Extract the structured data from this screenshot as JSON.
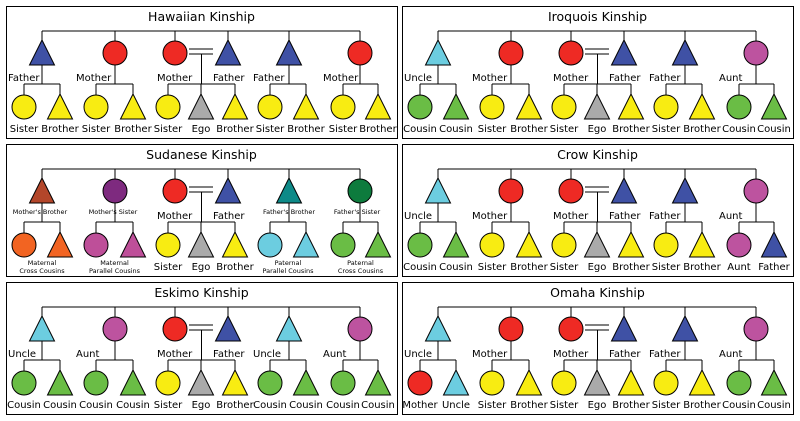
{
  "colors": {
    "blue": "#3f51a5",
    "red": "#ee2a24",
    "yellow": "#f8ec12",
    "grey": "#aaaaaa",
    "cyan": "#6ccde0",
    "purple": "#bd539f",
    "green": "#6abd45",
    "rust": "#b3462a",
    "plum": "#7e2a7f",
    "teal": "#0e8a88",
    "darkgreen": "#0d7b3d",
    "orange": "#f26422",
    "magenta": "#be4f99"
  },
  "panels": [
    {
      "title": "Hawaiian Kinship",
      "parents": [
        {
          "shape": "tri",
          "color": "blue",
          "label": "Father"
        },
        {
          "shape": "circ",
          "color": "red",
          "label": "Mother"
        },
        {
          "shape": "circ",
          "color": "red",
          "label": "Mother"
        },
        {
          "shape": "tri",
          "color": "blue",
          "label": "Father"
        },
        {
          "shape": "tri",
          "color": "blue",
          "label": "Father"
        },
        {
          "shape": "circ",
          "color": "red",
          "label": "Mother"
        }
      ],
      "children": [
        {
          "shape": "circ",
          "color": "yellow",
          "label": "Sister"
        },
        {
          "shape": "tri",
          "color": "yellow",
          "label": "Brother"
        },
        {
          "shape": "circ",
          "color": "yellow",
          "label": "Sister"
        },
        {
          "shape": "tri",
          "color": "yellow",
          "label": "Brother"
        },
        {
          "shape": "circ",
          "color": "yellow",
          "label": "Sister"
        },
        {
          "shape": "tri",
          "color": "grey",
          "label": "Ego"
        },
        {
          "shape": "tri",
          "color": "yellow",
          "label": "Brother"
        },
        {
          "shape": "circ",
          "color": "yellow",
          "label": "Sister"
        },
        {
          "shape": "tri",
          "color": "yellow",
          "label": "Brother"
        },
        {
          "shape": "circ",
          "color": "yellow",
          "label": "Sister"
        },
        {
          "shape": "tri",
          "color": "yellow",
          "label": "Brother"
        }
      ]
    },
    {
      "title": "Iroquois Kinship",
      "parents": [
        {
          "shape": "tri",
          "color": "cyan",
          "label": "Uncle"
        },
        {
          "shape": "circ",
          "color": "red",
          "label": "Mother"
        },
        {
          "shape": "circ",
          "color": "red",
          "label": "Mother"
        },
        {
          "shape": "tri",
          "color": "blue",
          "label": "Father"
        },
        {
          "shape": "tri",
          "color": "blue",
          "label": "Father"
        },
        {
          "shape": "circ",
          "color": "purple",
          "label": "Aunt"
        }
      ],
      "children": [
        {
          "shape": "circ",
          "color": "green",
          "label": "Cousin"
        },
        {
          "shape": "tri",
          "color": "green",
          "label": "Cousin"
        },
        {
          "shape": "circ",
          "color": "yellow",
          "label": "Sister"
        },
        {
          "shape": "tri",
          "color": "yellow",
          "label": "Brother"
        },
        {
          "shape": "circ",
          "color": "yellow",
          "label": "Sister"
        },
        {
          "shape": "tri",
          "color": "grey",
          "label": "Ego"
        },
        {
          "shape": "tri",
          "color": "yellow",
          "label": "Brother"
        },
        {
          "shape": "circ",
          "color": "yellow",
          "label": "Sister"
        },
        {
          "shape": "tri",
          "color": "yellow",
          "label": "Brother"
        },
        {
          "shape": "circ",
          "color": "green",
          "label": "Cousin"
        },
        {
          "shape": "tri",
          "color": "green",
          "label": "Cousin"
        }
      ]
    },
    {
      "title": "Sudanese Kinship",
      "parents": [
        {
          "shape": "tri",
          "color": "rust",
          "label": "Mother's Brother",
          "small": true
        },
        {
          "shape": "circ",
          "color": "plum",
          "label": "Mother's Sister",
          "small": true
        },
        {
          "shape": "circ",
          "color": "red",
          "label": "Mother"
        },
        {
          "shape": "tri",
          "color": "blue",
          "label": "Father"
        },
        {
          "shape": "tri",
          "color": "teal",
          "label": "Father's Brother",
          "small": true
        },
        {
          "shape": "circ",
          "color": "darkgreen",
          "label": "Father's Sister",
          "small": true
        }
      ],
      "children": [
        {
          "shape": "circ",
          "color": "orange",
          "label": ""
        },
        {
          "shape": "tri",
          "color": "orange",
          "label": ""
        },
        {
          "shape": "circ",
          "color": "magenta",
          "label": ""
        },
        {
          "shape": "tri",
          "color": "magenta",
          "label": ""
        },
        {
          "shape": "circ",
          "color": "yellow",
          "label": "Sister"
        },
        {
          "shape": "tri",
          "color": "grey",
          "label": "Ego"
        },
        {
          "shape": "tri",
          "color": "yellow",
          "label": "Brother"
        },
        {
          "shape": "circ",
          "color": "cyan",
          "label": ""
        },
        {
          "shape": "tri",
          "color": "cyan",
          "label": ""
        },
        {
          "shape": "circ",
          "color": "green",
          "label": ""
        },
        {
          "shape": "tri",
          "color": "green",
          "label": ""
        }
      ],
      "pair_labels": [
        {
          "pair": 0,
          "line1": "Maternal",
          "line2": "Cross Cousins"
        },
        {
          "pair": 1,
          "line1": "Maternal",
          "line2": "Parallel Cousins"
        },
        {
          "pair": 3,
          "line1": "Paternal",
          "line2": "Parallel Cousins"
        },
        {
          "pair": 4,
          "line1": "Paternal",
          "line2": "Cross Cousins"
        }
      ]
    },
    {
      "title": "Crow Kinship",
      "parents": [
        {
          "shape": "tri",
          "color": "cyan",
          "label": "Uncle"
        },
        {
          "shape": "circ",
          "color": "red",
          "label": "Mother"
        },
        {
          "shape": "circ",
          "color": "red",
          "label": "Mother"
        },
        {
          "shape": "tri",
          "color": "blue",
          "label": "Father"
        },
        {
          "shape": "tri",
          "color": "blue",
          "label": "Father"
        },
        {
          "shape": "circ",
          "color": "purple",
          "label": "Aunt"
        }
      ],
      "children": [
        {
          "shape": "circ",
          "color": "green",
          "label": "Cousin"
        },
        {
          "shape": "tri",
          "color": "green",
          "label": "Cousin"
        },
        {
          "shape": "circ",
          "color": "yellow",
          "label": "Sister"
        },
        {
          "shape": "tri",
          "color": "yellow",
          "label": "Brother"
        },
        {
          "shape": "circ",
          "color": "yellow",
          "label": "Sister"
        },
        {
          "shape": "tri",
          "color": "grey",
          "label": "Ego"
        },
        {
          "shape": "tri",
          "color": "yellow",
          "label": "Brother"
        },
        {
          "shape": "circ",
          "color": "yellow",
          "label": "Sister"
        },
        {
          "shape": "tri",
          "color": "yellow",
          "label": "Brother"
        },
        {
          "shape": "circ",
          "color": "purple",
          "label": "Aunt"
        },
        {
          "shape": "tri",
          "color": "blue",
          "label": "Father"
        }
      ]
    },
    {
      "title": "Eskimo Kinship",
      "parents": [
        {
          "shape": "tri",
          "color": "cyan",
          "label": "Uncle"
        },
        {
          "shape": "circ",
          "color": "purple",
          "label": "Aunt"
        },
        {
          "shape": "circ",
          "color": "red",
          "label": "Mother"
        },
        {
          "shape": "tri",
          "color": "blue",
          "label": "Father"
        },
        {
          "shape": "tri",
          "color": "cyan",
          "label": "Uncle"
        },
        {
          "shape": "circ",
          "color": "purple",
          "label": "Aunt"
        }
      ],
      "children": [
        {
          "shape": "circ",
          "color": "green",
          "label": "Cousin"
        },
        {
          "shape": "tri",
          "color": "green",
          "label": "Cousin"
        },
        {
          "shape": "circ",
          "color": "green",
          "label": "Cousin"
        },
        {
          "shape": "tri",
          "color": "green",
          "label": "Cousin"
        },
        {
          "shape": "circ",
          "color": "yellow",
          "label": "Sister"
        },
        {
          "shape": "tri",
          "color": "grey",
          "label": "Ego"
        },
        {
          "shape": "tri",
          "color": "yellow",
          "label": "Brother"
        },
        {
          "shape": "circ",
          "color": "green",
          "label": "Cousin"
        },
        {
          "shape": "tri",
          "color": "green",
          "label": "Cousin"
        },
        {
          "shape": "circ",
          "color": "green",
          "label": "Cousin"
        },
        {
          "shape": "tri",
          "color": "green",
          "label": "Cousin"
        }
      ]
    },
    {
      "title": "Omaha Kinship",
      "parents": [
        {
          "shape": "tri",
          "color": "cyan",
          "label": "Uncle"
        },
        {
          "shape": "circ",
          "color": "red",
          "label": "Mother"
        },
        {
          "shape": "circ",
          "color": "red",
          "label": "Mother"
        },
        {
          "shape": "tri",
          "color": "blue",
          "label": "Father"
        },
        {
          "shape": "tri",
          "color": "blue",
          "label": "Father"
        },
        {
          "shape": "circ",
          "color": "purple",
          "label": "Aunt"
        }
      ],
      "children": [
        {
          "shape": "circ",
          "color": "red",
          "label": "Mother"
        },
        {
          "shape": "tri",
          "color": "cyan",
          "label": "Uncle"
        },
        {
          "shape": "circ",
          "color": "yellow",
          "label": "Sister"
        },
        {
          "shape": "tri",
          "color": "yellow",
          "label": "Brother"
        },
        {
          "shape": "circ",
          "color": "yellow",
          "label": "Sister"
        },
        {
          "shape": "tri",
          "color": "grey",
          "label": "Ego"
        },
        {
          "shape": "tri",
          "color": "yellow",
          "label": "Brother"
        },
        {
          "shape": "circ",
          "color": "yellow",
          "label": "Sister"
        },
        {
          "shape": "tri",
          "color": "yellow",
          "label": "Brother"
        },
        {
          "shape": "circ",
          "color": "green",
          "label": "Cousin"
        },
        {
          "shape": "tri",
          "color": "green",
          "label": "Cousin"
        }
      ]
    }
  ]
}
